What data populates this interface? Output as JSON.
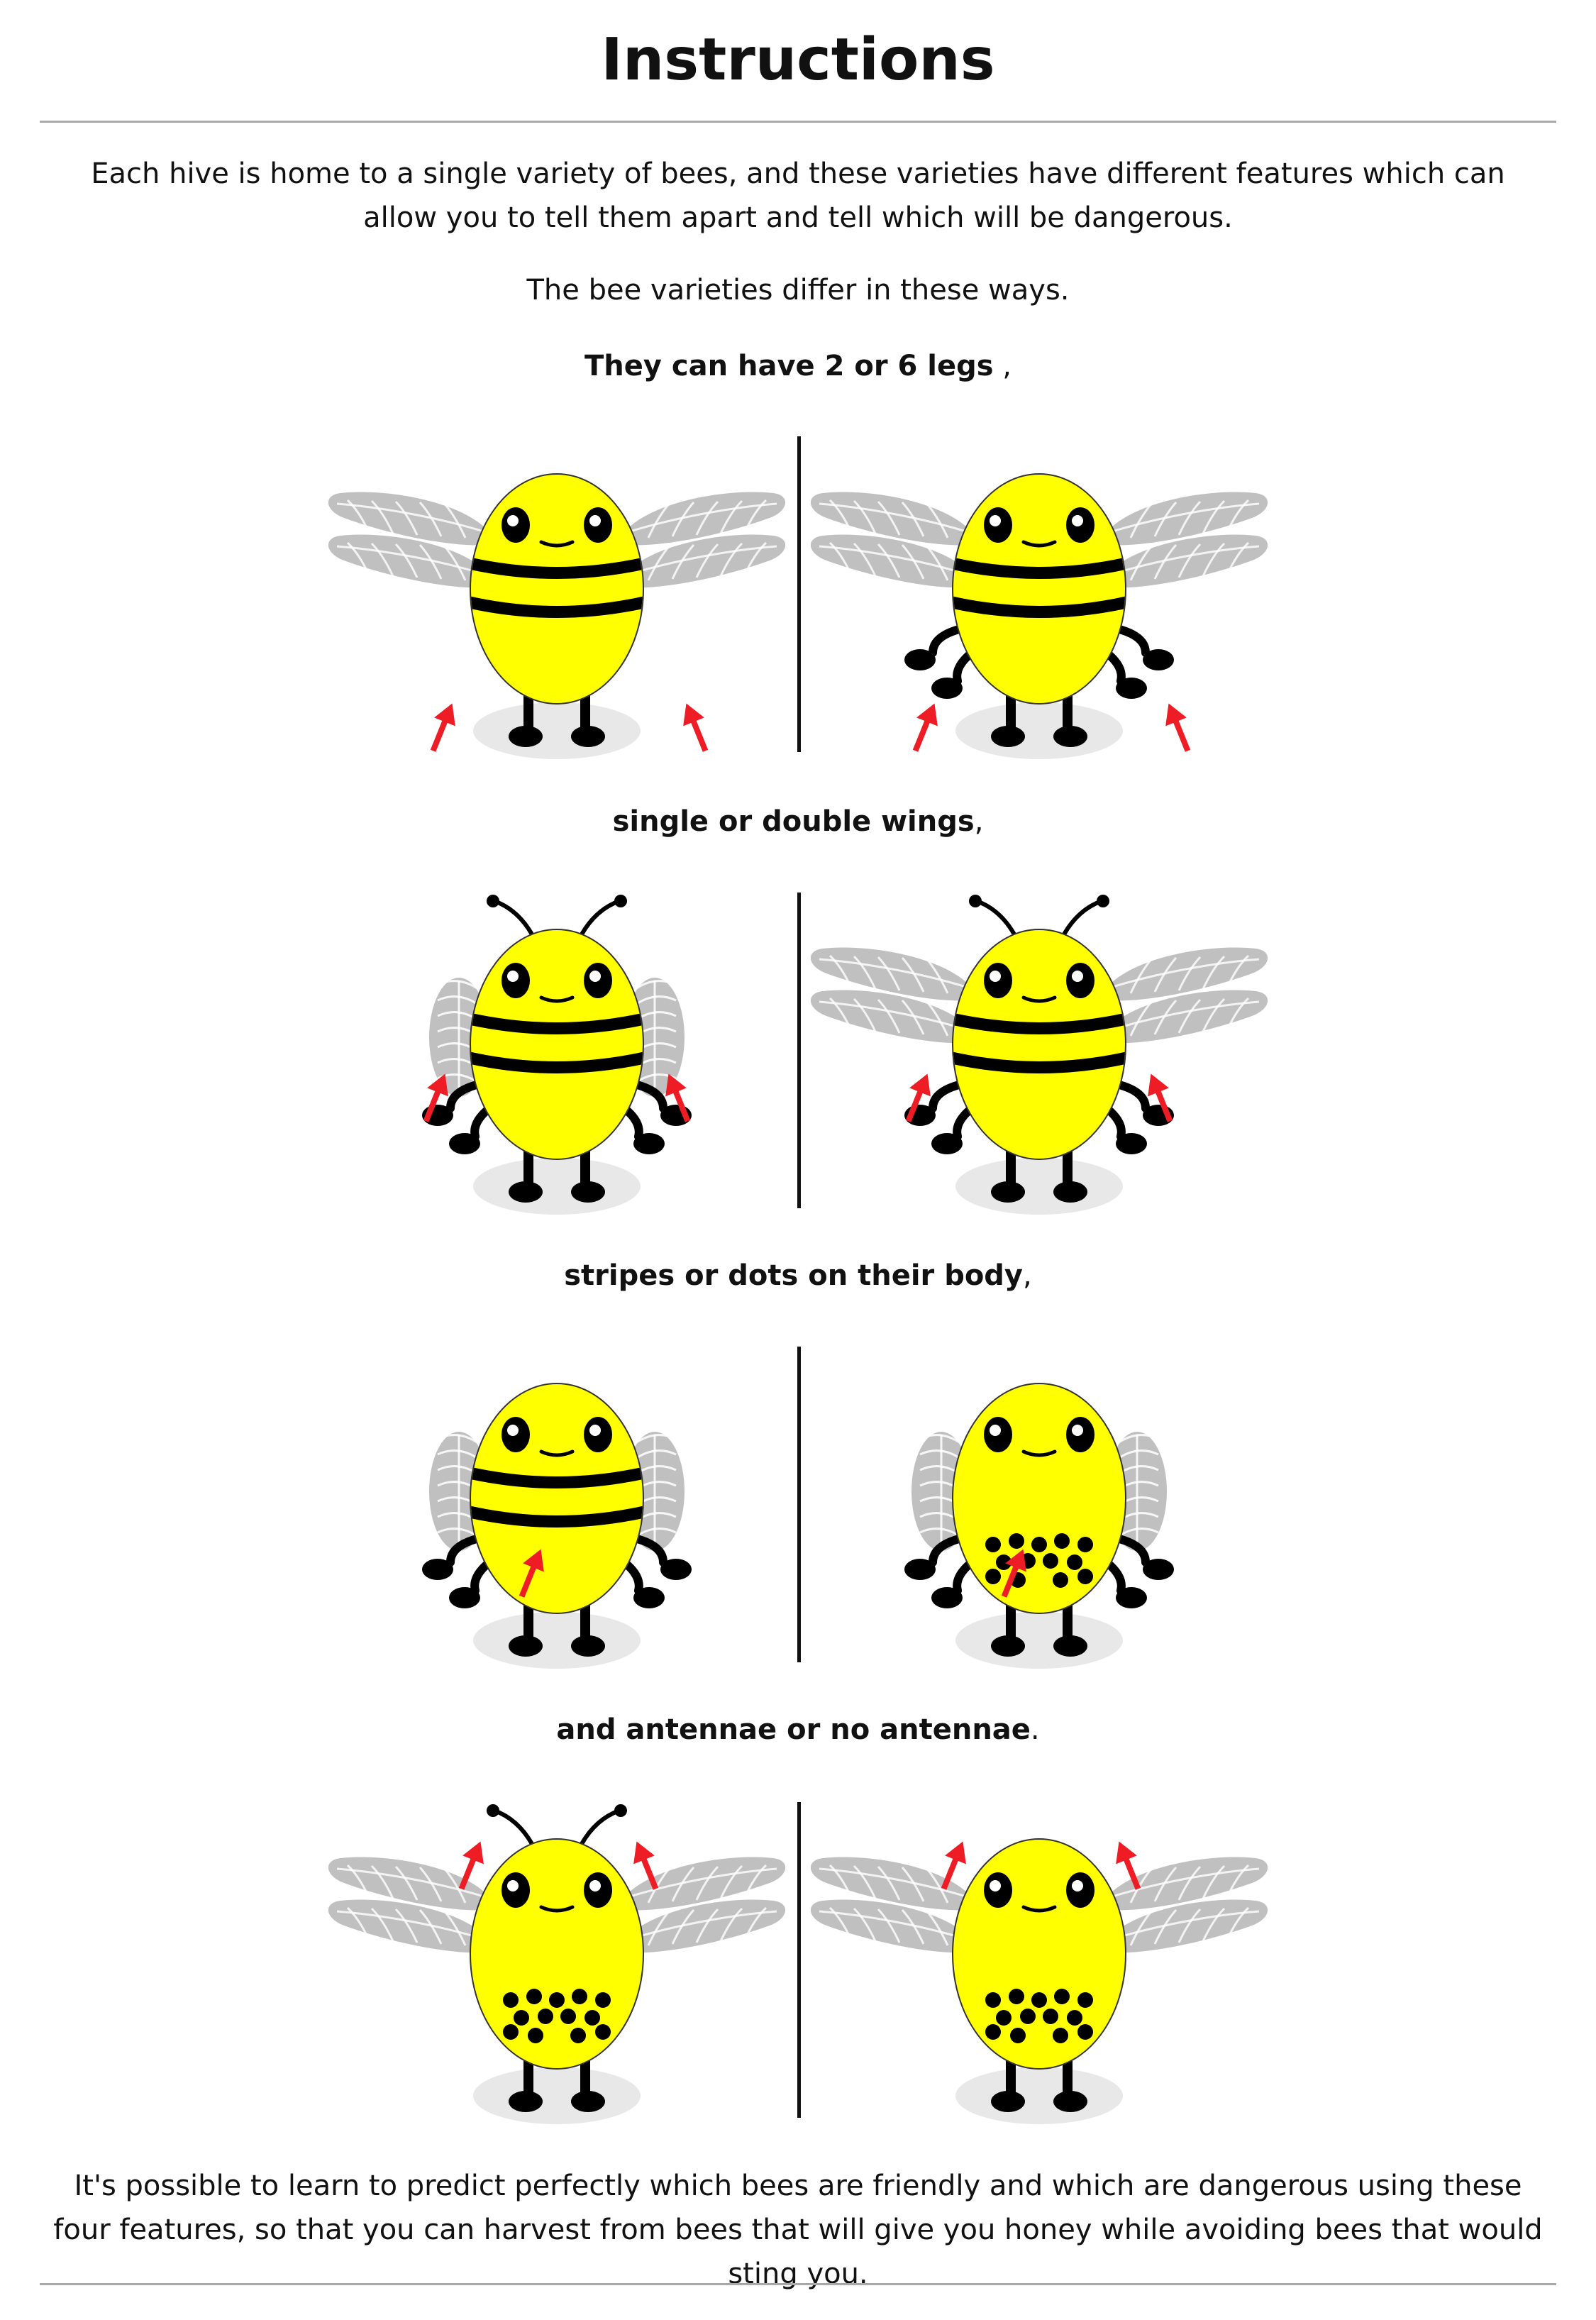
{
  "title": "Instructions",
  "intro": "Each hive is home to a single variety of bees, and these varieties have different features which can allow you to tell them apart and tell which will be dangerous.",
  "differ": "The bee varieties differ in these ways.",
  "features": [
    {
      "bold": "They can have 2 or 6 legs",
      "tail": " ,"
    },
    {
      "bold": "single or double wings",
      "tail": ","
    },
    {
      "bold": "stripes or dots on their body",
      "tail": ","
    },
    {
      "bold": "and antennae or no antennae",
      "tail": "."
    }
  ],
  "conclusion": "It's possible to learn to predict perfectly which bees are friendly and which are dangerous using these four features, so that you can harvest from bees that will give you honey while avoiding bees that would sting you.",
  "colors": {
    "body": "#ffff00",
    "stripe": "#000000",
    "wing": "#c0c0c0",
    "arrow": "#ee1c24",
    "shadow": "#e8e8e8"
  },
  "bees": [
    {
      "legs": 2,
      "wings": "double",
      "pattern": "stripes",
      "antennae": false,
      "arrows": "legs"
    },
    {
      "legs": 6,
      "wings": "double",
      "pattern": "stripes",
      "antennae": false,
      "arrows": "legs"
    },
    {
      "legs": 6,
      "wings": "single",
      "pattern": "stripes",
      "antennae": true,
      "arrows": "wings"
    },
    {
      "legs": 6,
      "wings": "double",
      "pattern": "stripes",
      "antennae": true,
      "arrows": "wings"
    },
    {
      "legs": 6,
      "wings": "single",
      "pattern": "stripes",
      "antennae": false,
      "arrows": "body"
    },
    {
      "legs": 6,
      "wings": "single",
      "pattern": "dots",
      "antennae": false,
      "arrows": "body"
    },
    {
      "legs": 2,
      "wings": "double",
      "pattern": "dots",
      "antennae": true,
      "arrows": "antennae"
    },
    {
      "legs": 2,
      "wings": "double",
      "pattern": "dots",
      "antennae": false,
      "arrows": "antennae"
    }
  ]
}
